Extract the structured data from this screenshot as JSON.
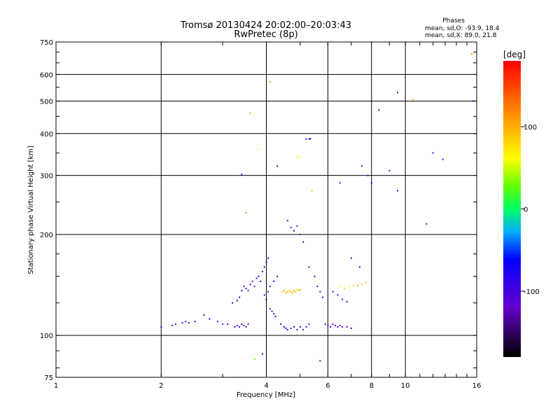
{
  "chart_data": {
    "type": "scatter",
    "title": "Tromsø 20130424 20:02:00–20:03:43",
    "subtitle": "RwPretec (8p)",
    "xlabel": "Frequency [MHz]",
    "ylabel": "Stationary phase Virtual Height [km]",
    "xscale": "log",
    "yscale": "log",
    "xlim": [
      1,
      16
    ],
    "ylim": [
      75,
      750
    ],
    "x_ticks": [
      {
        "value": 1,
        "label": "1"
      },
      {
        "value": 2,
        "label": "2"
      },
      {
        "value": 4,
        "label": "4"
      },
      {
        "value": 6,
        "label": "6"
      },
      {
        "value": 8,
        "label": "8"
      },
      {
        "value": 10,
        "label": "10"
      },
      {
        "value": 16,
        "label": "16"
      }
    ],
    "y_ticks": [
      {
        "value": 75,
        "label": "75"
      },
      {
        "value": 100,
        "label": "100"
      },
      {
        "value": 200,
        "label": "200"
      },
      {
        "value": 300,
        "label": "300"
      },
      {
        "value": 400,
        "label": "400"
      },
      {
        "value": 500,
        "label": "500"
      },
      {
        "value": 600,
        "label": "600"
      },
      {
        "value": 750,
        "label": "750"
      }
    ],
    "grid": true,
    "phases_box": {
      "heading": "Phases",
      "line_o": "mean, sd,O: -93.9, 18.4",
      "line_x": "mean, sd,X: 89.0, 21.8"
    },
    "colorbar": {
      "label": "[deg]",
      "range": [
        -180,
        180
      ],
      "ticks": [
        {
          "value": 100,
          "label": "100"
        },
        {
          "value": 0,
          "label": "0"
        },
        {
          "value": -100,
          "label": "-100"
        }
      ]
    },
    "points": [
      [
        2.0,
        106,
        -100
      ],
      [
        2.15,
        107,
        -100
      ],
      [
        2.2,
        108,
        -100
      ],
      [
        2.3,
        109,
        -95
      ],
      [
        2.35,
        110,
        -100
      ],
      [
        2.4,
        109,
        -90
      ],
      [
        2.5,
        110,
        -100
      ],
      [
        2.65,
        115,
        -100
      ],
      [
        2.75,
        112,
        -90
      ],
      [
        2.9,
        110,
        -100
      ],
      [
        3.0,
        108,
        -100
      ],
      [
        3.1,
        108,
        -100
      ],
      [
        3.25,
        106,
        -100
      ],
      [
        3.3,
        107,
        -100
      ],
      [
        3.35,
        106,
        -95
      ],
      [
        3.4,
        108,
        -100
      ],
      [
        3.45,
        107,
        -100
      ],
      [
        3.5,
        106,
        -100
      ],
      [
        3.55,
        108,
        -100
      ],
      [
        3.2,
        125,
        -100
      ],
      [
        3.3,
        127,
        -90
      ],
      [
        3.35,
        130,
        -100
      ],
      [
        3.4,
        136,
        -100
      ],
      [
        3.45,
        140,
        -100
      ],
      [
        3.5,
        138,
        -95
      ],
      [
        3.55,
        136,
        -100
      ],
      [
        3.6,
        142,
        -100
      ],
      [
        3.65,
        145,
        -100
      ],
      [
        3.7,
        140,
        -100
      ],
      [
        3.75,
        148,
        -95
      ],
      [
        3.8,
        150,
        -100
      ],
      [
        3.85,
        145,
        -100
      ],
      [
        3.9,
        155,
        -100
      ],
      [
        3.95,
        160,
        -100
      ],
      [
        4.0,
        165,
        -100
      ],
      [
        4.05,
        170,
        -100
      ],
      [
        3.95,
        132,
        -100
      ],
      [
        4.0,
        128,
        -100
      ],
      [
        4.05,
        135,
        -100
      ],
      [
        4.1,
        140,
        -100
      ],
      [
        4.2,
        145,
        -100
      ],
      [
        4.3,
        150,
        -100
      ],
      [
        4.1,
        120,
        -100
      ],
      [
        4.15,
        118,
        -95
      ],
      [
        4.2,
        116,
        -100
      ],
      [
        4.25,
        114,
        -100
      ],
      [
        4.4,
        108,
        -100
      ],
      [
        4.5,
        106,
        -100
      ],
      [
        4.55,
        105,
        -100
      ],
      [
        4.6,
        104,
        -100
      ],
      [
        4.7,
        105,
        -100
      ],
      [
        4.8,
        106,
        -100
      ],
      [
        4.9,
        104,
        -100
      ],
      [
        5.0,
        106,
        -100
      ],
      [
        5.1,
        104,
        -100
      ],
      [
        5.2,
        106,
        -100
      ],
      [
        5.3,
        108,
        -100
      ],
      [
        4.45,
        135,
        85
      ],
      [
        4.5,
        136,
        90
      ],
      [
        4.55,
        134,
        100
      ],
      [
        4.6,
        135,
        95
      ],
      [
        4.65,
        136,
        90
      ],
      [
        4.7,
        135,
        85
      ],
      [
        4.75,
        134,
        95
      ],
      [
        4.8,
        136,
        90
      ],
      [
        4.85,
        135,
        100
      ],
      [
        4.9,
        137,
        85
      ],
      [
        4.95,
        136,
        90
      ],
      [
        5.0,
        137,
        95
      ],
      [
        4.6,
        220,
        -100
      ],
      [
        4.7,
        210,
        -95
      ],
      [
        4.8,
        205,
        -100
      ],
      [
        4.9,
        212,
        -100
      ],
      [
        5.0,
        200,
        -100
      ],
      [
        5.1,
        190,
        -100
      ],
      [
        5.3,
        160,
        -100
      ],
      [
        5.5,
        150,
        -100
      ],
      [
        5.6,
        140,
        -100
      ],
      [
        5.7,
        135,
        -100
      ],
      [
        5.8,
        130,
        -100
      ],
      [
        5.9,
        108,
        -100
      ],
      [
        6.0,
        107,
        -100
      ],
      [
        6.1,
        106,
        -100
      ],
      [
        6.2,
        108,
        -100
      ],
      [
        6.3,
        107,
        -100
      ],
      [
        6.4,
        106,
        -100
      ],
      [
        6.5,
        107,
        -100
      ],
      [
        6.6,
        106,
        -100
      ],
      [
        6.8,
        106,
        -100
      ],
      [
        7.0,
        105,
        -100
      ],
      [
        6.5,
        140,
        50
      ],
      [
        6.7,
        138,
        40
      ],
      [
        6.9,
        140,
        60
      ],
      [
        7.1,
        141,
        90
      ],
      [
        7.3,
        141,
        95
      ],
      [
        7.5,
        142,
        90
      ],
      [
        7.7,
        144,
        85
      ],
      [
        6.2,
        135,
        -100
      ],
      [
        6.4,
        132,
        -100
      ],
      [
        6.6,
        128,
        -100
      ],
      [
        6.8,
        126,
        -100
      ],
      [
        7.4,
        160,
        -100
      ],
      [
        7.0,
        170,
        -100
      ],
      [
        3.7,
        85,
        30
      ],
      [
        5.7,
        84,
        -100
      ],
      [
        3.9,
        88,
        -100
      ],
      [
        5.2,
        385,
        -100
      ],
      [
        5.3,
        385,
        -100
      ],
      [
        5.35,
        386,
        -100
      ],
      [
        4.3,
        320,
        -100
      ],
      [
        3.4,
        302,
        -100
      ],
      [
        5.0,
        340,
        70
      ],
      [
        6.5,
        285,
        -100
      ],
      [
        7.5,
        320,
        -100
      ],
      [
        7.8,
        300,
        -100
      ],
      [
        8.0,
        285,
        -100
      ],
      [
        9.0,
        310,
        -100
      ],
      [
        9.5,
        270,
        -100
      ],
      [
        8.4,
        470,
        -100
      ],
      [
        9.5,
        530,
        -100
      ],
      [
        10.5,
        505,
        100
      ],
      [
        11.5,
        215,
        -100
      ],
      [
        12.0,
        350,
        -100
      ],
      [
        12.8,
        335,
        -100
      ],
      [
        15.5,
        690,
        120
      ],
      [
        15.6,
        500,
        -100
      ],
      [
        4.1,
        570,
        100
      ],
      [
        3.6,
        460,
        100
      ],
      [
        3.8,
        360,
        60
      ],
      [
        3.5,
        232,
        120
      ],
      [
        5.4,
        270,
        90
      ],
      [
        4.9,
        340,
        80
      ]
    ]
  }
}
